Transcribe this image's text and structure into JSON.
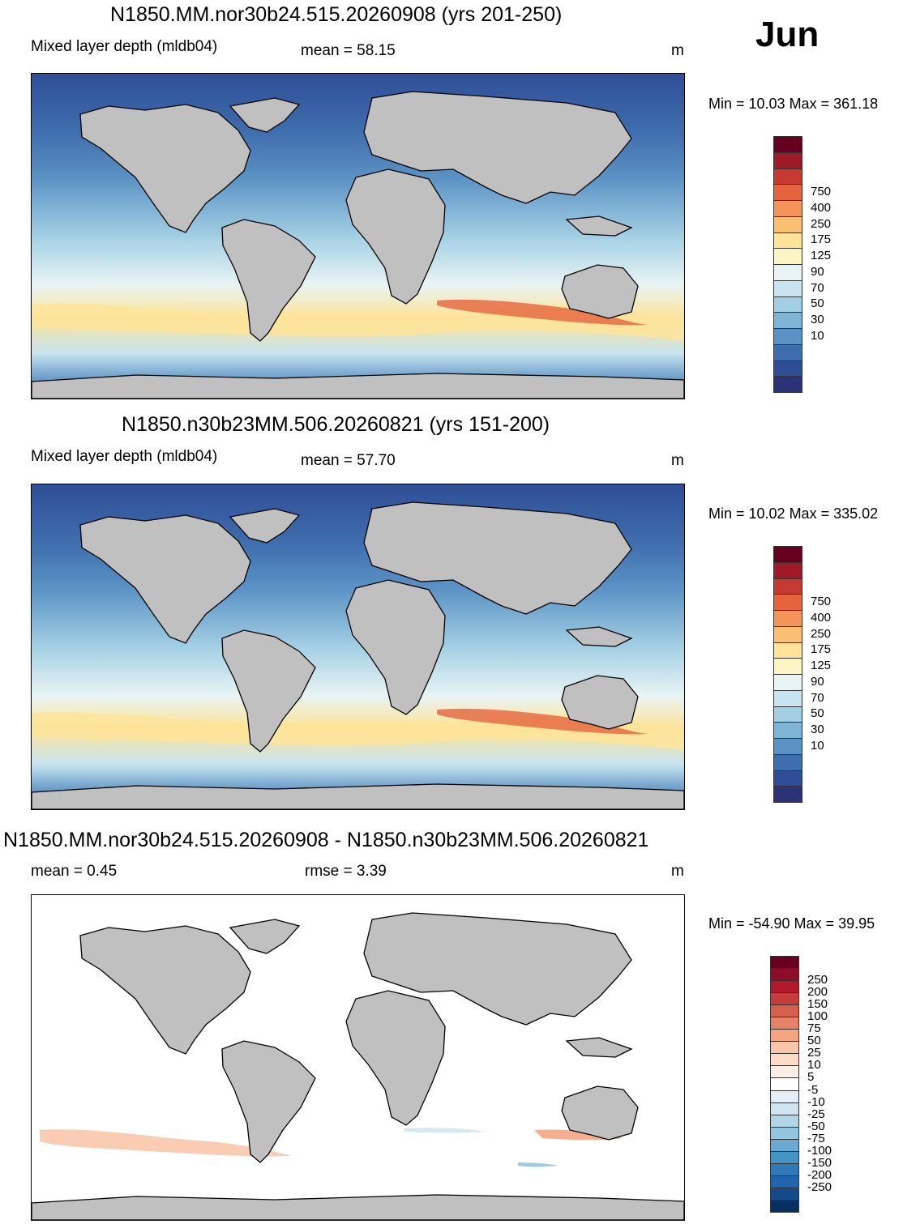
{
  "month": "Jun",
  "panels": [
    {
      "title": "N1850.MM.nor30b24.515.20260908 (yrs 201-250)",
      "variable": "Mixed layer depth (mldb04)",
      "stat": "mean =  58.15",
      "unit": "m",
      "minmax": "Min =  10.03 Max = 361.18",
      "colorbar": {
        "labels": [
          "750",
          "400",
          "250",
          "175",
          "125",
          "90",
          "70",
          "50",
          "30",
          "10"
        ],
        "colors": [
          "#67001f",
          "#9e1a29",
          "#c73a32",
          "#e5643d",
          "#f4935a",
          "#fbbf74",
          "#fde49a",
          "#fbf6c4",
          "#e8f4f4",
          "#c8e4ef",
          "#a3cfe4",
          "#7eb4d6",
          "#5b92c4",
          "#3f6eae",
          "#2f4e96",
          "#2b3278"
        ]
      }
    },
    {
      "title": "N1850.n30b23MM.506.20260821 (yrs 151-200)",
      "variable": "Mixed layer depth (mldb04)",
      "stat": "mean =  57.70",
      "unit": "m",
      "minmax": "Min =  10.02 Max = 335.02",
      "colorbar": {
        "labels": [
          "750",
          "400",
          "250",
          "175",
          "125",
          "90",
          "70",
          "50",
          "30",
          "10"
        ],
        "colors": [
          "#67001f",
          "#9e1a29",
          "#c73a32",
          "#e5643d",
          "#f4935a",
          "#fbbf74",
          "#fde49a",
          "#fbf6c4",
          "#e8f4f4",
          "#c8e4ef",
          "#a3cfe4",
          "#7eb4d6",
          "#5b92c4",
          "#3f6eae",
          "#2f4e96",
          "#2b3278"
        ]
      }
    },
    {
      "title": "N1850.MM.nor30b24.515.20260908 - N1850.n30b23MM.506.20260821",
      "stat": "mean =   0.45",
      "stat2": "rmse =   3.39",
      "unit": "m",
      "minmax": "Min = -54.90 Max =  39.95",
      "colorbar": {
        "labels": [
          "250",
          "200",
          "150",
          "100",
          "75",
          "50",
          "25",
          "10",
          "5",
          "-5",
          "-10",
          "-25",
          "-50",
          "-75",
          "-100",
          "-150",
          "-200",
          "-250"
        ],
        "colors": [
          "#67001f",
          "#8e0c25",
          "#b2182b",
          "#c43c3c",
          "#d6604d",
          "#e58368",
          "#f4a582",
          "#f8c6ab",
          "#fddbc7",
          "#fbeee6",
          "#ffffff",
          "#e6eff5",
          "#d1e5f0",
          "#b3d5e7",
          "#92c5de",
          "#6aaad0",
          "#4393c3",
          "#3079b7",
          "#2166ac",
          "#174a88",
          "#053061"
        ]
      }
    }
  ],
  "colors": {
    "land": "#c0c0c0",
    "ocean_deep_polar": "#2f4e96",
    "ocean_mid": "#5b92c4",
    "ocean_light": "#c8e4ef",
    "diff_background": "#ffffff"
  }
}
